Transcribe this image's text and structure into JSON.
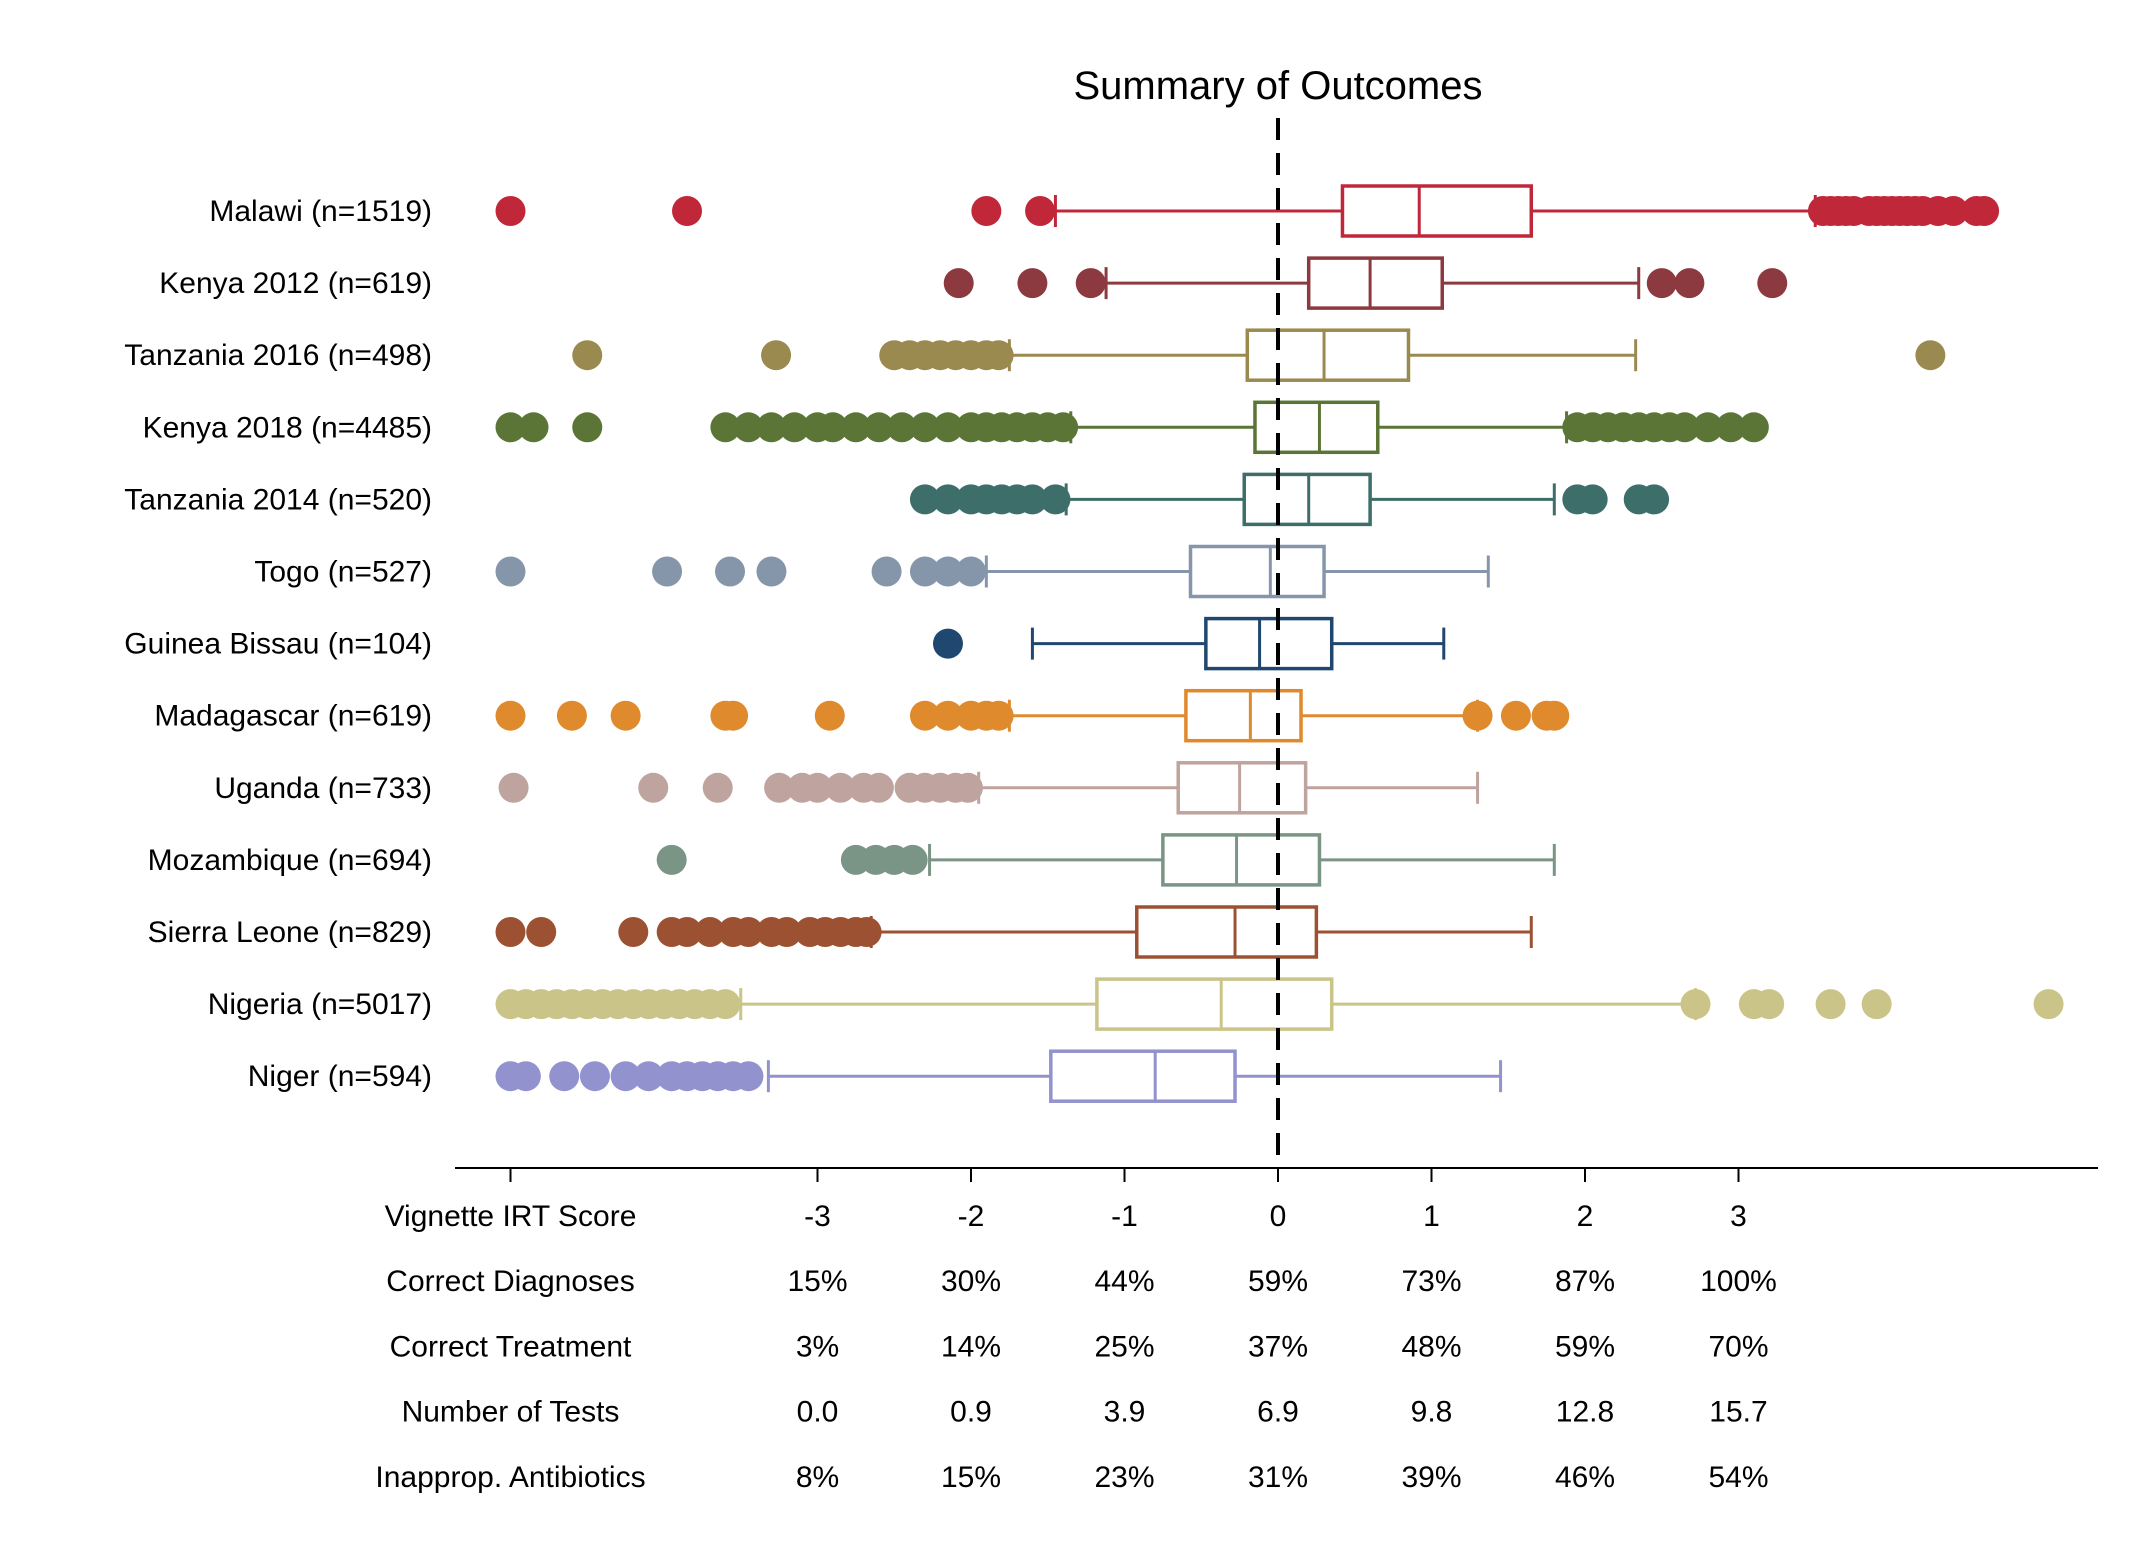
{
  "chart_data": {
    "type": "boxplot",
    "title": "Summary of Outcomes",
    "reference_line": 0,
    "x_ticks": [
      -3,
      -2,
      -1,
      0,
      1,
      2,
      3
    ],
    "table_rows": [
      {
        "label": "Vignette IRT Score",
        "values": [
          "-3",
          "-2",
          "-1",
          "0",
          "1",
          "2",
          "3"
        ]
      },
      {
        "label": "Correct Diagnoses",
        "values": [
          "15%",
          "30%",
          "44%",
          "59%",
          "73%",
          "87%",
          "100%"
        ]
      },
      {
        "label": "Correct Treatment",
        "values": [
          "3%",
          "14%",
          "25%",
          "37%",
          "48%",
          "59%",
          "70%"
        ]
      },
      {
        "label": "Number of Tests",
        "values": [
          "0.0",
          "0.9",
          "3.9",
          "6.9",
          "9.8",
          "12.8",
          "15.7"
        ]
      },
      {
        "label": "Inapprop. Antibiotics",
        "values": [
          "8%",
          "15%",
          "23%",
          "31%",
          "39%",
          "46%",
          "54%"
        ]
      }
    ],
    "series": [
      {
        "label": "Malawi (n=1519)",
        "color": "#c0283a",
        "whisker_low": -1.45,
        "q1": 0.42,
        "median": 0.92,
        "q3": 1.65,
        "whisker_high": 3.5,
        "outliers": [
          -5,
          -3.85,
          -1.9,
          -1.55,
          3.55,
          3.6,
          3.65,
          3.7,
          3.75,
          3.85,
          3.9,
          3.95,
          4.0,
          4.05,
          4.1,
          4.15,
          4.2,
          4.3,
          4.4,
          4.55,
          4.6
        ]
      },
      {
        "label": "Kenya 2012 (n=619)",
        "color": "#8c3a40",
        "whisker_low": -1.12,
        "q1": 0.2,
        "median": 0.6,
        "q3": 1.07,
        "whisker_high": 2.35,
        "outliers": [
          -2.08,
          -1.6,
          -1.22,
          2.5,
          2.68,
          3.22
        ]
      },
      {
        "label": "Tanzania 2016 (n=498)",
        "color": "#9a8a50",
        "whisker_low": -1.75,
        "q1": -0.2,
        "median": 0.3,
        "q3": 0.85,
        "whisker_high": 2.33,
        "outliers": [
          -4.5,
          -3.27,
          -2.5,
          -2.4,
          -2.3,
          -2.2,
          -2.1,
          -2.0,
          -1.9,
          -1.82,
          4.25
        ]
      },
      {
        "label": "Kenya 2018 (n=4485)",
        "color": "#5a7535",
        "whisker_low": -1.35,
        "q1": -0.15,
        "median": 0.27,
        "q3": 0.65,
        "whisker_high": 1.88,
        "outliers": [
          -5,
          -4.85,
          -4.5,
          -3.6,
          -3.45,
          -3.3,
          -3.15,
          -3.0,
          -2.9,
          -2.75,
          -2.6,
          -2.45,
          -2.3,
          -2.15,
          -2.0,
          -1.9,
          -1.8,
          -1.7,
          -1.6,
          -1.5,
          -1.4,
          1.95,
          2.05,
          2.15,
          2.25,
          2.35,
          2.45,
          2.55,
          2.65,
          2.8,
          2.95,
          3.1
        ]
      },
      {
        "label": "Tanzania 2014 (n=520)",
        "color": "#3d6e6a",
        "whisker_low": -1.38,
        "q1": -0.22,
        "median": 0.2,
        "q3": 0.6,
        "whisker_high": 1.8,
        "outliers": [
          -2.3,
          -2.15,
          -2.0,
          -1.9,
          -1.8,
          -1.7,
          -1.6,
          -1.45,
          1.95,
          2.05,
          2.35,
          2.45
        ]
      },
      {
        "label": "Togo (n=527)",
        "color": "#8696aa",
        "whisker_low": -1.9,
        "q1": -0.57,
        "median": -0.05,
        "q3": 0.3,
        "whisker_high": 1.37,
        "outliers": [
          -5,
          -3.98,
          -3.57,
          -3.3,
          -2.55,
          -2.3,
          -2.15,
          -2.0
        ]
      },
      {
        "label": "Guinea Bissau (n=104)",
        "color": "#1f4770",
        "whisker_low": -1.6,
        "q1": -0.47,
        "median": -0.12,
        "q3": 0.35,
        "whisker_high": 1.08,
        "outliers": [
          -2.15
        ]
      },
      {
        "label": "Madagascar (n=619)",
        "color": "#e08a2e",
        "whisker_low": -1.75,
        "q1": -0.6,
        "median": -0.18,
        "q3": 0.15,
        "whisker_high": 1.3,
        "outliers": [
          -5,
          -4.6,
          -4.25,
          -3.6,
          -3.55,
          -2.92,
          -2.3,
          -2.15,
          -2.0,
          -1.9,
          -1.82,
          1.3,
          1.55,
          1.75,
          1.8
        ]
      },
      {
        "label": "Uganda (n=733)",
        "color": "#bfa39e",
        "whisker_low": -1.95,
        "q1": -0.65,
        "median": -0.25,
        "q3": 0.18,
        "whisker_high": 1.3,
        "outliers": [
          -4.98,
          -4.07,
          -3.65,
          -3.25,
          -3.1,
          -3.0,
          -2.85,
          -2.7,
          -2.6,
          -2.4,
          -2.3,
          -2.2,
          -2.1,
          -2.02
        ]
      },
      {
        "label": "Mozambique (n=694)",
        "color": "#7a9585",
        "whisker_low": -2.27,
        "q1": -0.75,
        "median": -0.27,
        "q3": 0.27,
        "whisker_high": 1.8,
        "outliers": [
          -3.95,
          -2.75,
          -2.62,
          -2.5,
          -2.38
        ]
      },
      {
        "label": "Sierra Leone (n=829)",
        "color": "#9c5232",
        "whisker_low": -2.65,
        "q1": -0.92,
        "median": -0.28,
        "q3": 0.25,
        "whisker_high": 1.65,
        "outliers": [
          -5,
          -4.8,
          -4.2,
          -3.95,
          -3.85,
          -3.7,
          -3.55,
          -3.45,
          -3.3,
          -3.2,
          -3.05,
          -2.95,
          -2.85,
          -2.75,
          -2.68
        ]
      },
      {
        "label": "Nigeria (n=5017)",
        "color": "#cbc489",
        "whisker_low": -3.5,
        "q1": -1.18,
        "median": -0.37,
        "q3": 0.35,
        "whisker_high": 2.72,
        "outliers": [
          -5,
          -4.9,
          -4.8,
          -4.7,
          -4.6,
          -4.5,
          -4.4,
          -4.3,
          -4.2,
          -4.1,
          -4.0,
          -3.9,
          -3.8,
          -3.7,
          -3.6,
          2.72,
          3.1,
          3.2,
          3.6,
          3.9,
          5.02
        ]
      },
      {
        "label": "Niger (n=594)",
        "color": "#9292cf",
        "whisker_low": -3.32,
        "q1": -1.48,
        "median": -0.8,
        "q3": -0.28,
        "whisker_high": 1.45,
        "outliers": [
          -5,
          -4.9,
          -4.65,
          -4.45,
          -4.25,
          -4.1,
          -3.95,
          -3.85,
          -3.75,
          -3.65,
          -3.55,
          -3.45
        ]
      }
    ]
  }
}
